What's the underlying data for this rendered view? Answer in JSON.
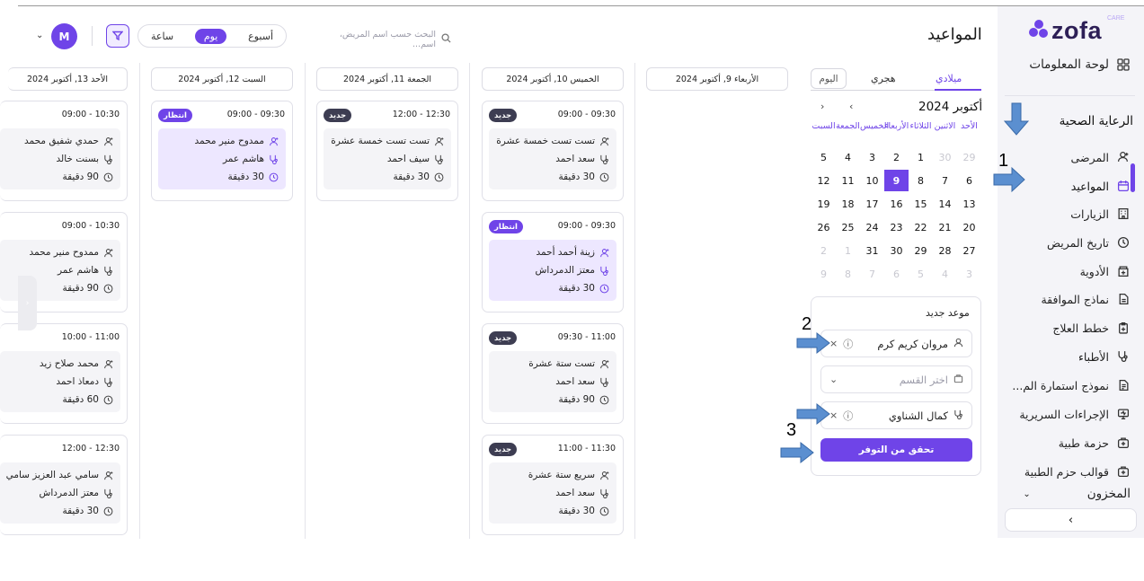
{
  "app": {
    "brand": "zofa",
    "brand_tag": "CARE",
    "page_title": "المواعيد"
  },
  "sidebar": {
    "dashboard": "لوحة المعلومات",
    "section_healthcare": "الرعاية الصحية",
    "items": [
      {
        "label": "المرضى",
        "icon": "patient-icon"
      },
      {
        "label": "المواعيد",
        "icon": "calendar-icon",
        "active": true
      },
      {
        "label": "الزيارات",
        "icon": "building-icon"
      },
      {
        "label": "تاريخ المريض",
        "icon": "history-icon"
      },
      {
        "label": "الأدوية",
        "icon": "pharmacy-icon"
      },
      {
        "label": "نماذج الموافقة",
        "icon": "document-icon"
      },
      {
        "label": "خطط العلاج",
        "icon": "clipboard-icon"
      },
      {
        "label": "الأطباء",
        "icon": "stethoscope-icon"
      },
      {
        "label": "نموذج استمارة الم...",
        "icon": "form-icon"
      },
      {
        "label": "الإجراءات السريرية",
        "icon": "monitor-icon"
      },
      {
        "label": "حزمة طبية",
        "icon": "medkit-icon"
      },
      {
        "label": "قوالب حزم الطبية",
        "icon": "medkit-template-icon"
      }
    ],
    "section_inventory": "المخزون",
    "collapse": "‹"
  },
  "header": {
    "search_placeholder": "البحث حسب اسم المريض، اسم...",
    "view_week": "أسبوع",
    "view_day": "يوم",
    "view_hour": "ساعة",
    "avatar_initial": "M"
  },
  "calendar": {
    "tab_gregorian": "ميلادي",
    "tab_hijri": "هجري",
    "today": "اليوم",
    "month": "أكتوبر 2024",
    "weekdays": [
      "الأحد",
      "الاثنين",
      "الثلاثاء",
      "الأربعاء",
      "الخميس",
      "الجمعة",
      "السبت"
    ],
    "weeks": [
      [
        "29",
        "30",
        "1",
        "2",
        "3",
        "4",
        "5"
      ],
      [
        "6",
        "7",
        "8",
        "9",
        "10",
        "11",
        "12"
      ],
      [
        "13",
        "14",
        "15",
        "16",
        "17",
        "18",
        "19"
      ],
      [
        "20",
        "21",
        "22",
        "23",
        "24",
        "25",
        "26"
      ],
      [
        "27",
        "28",
        "29",
        "30",
        "31",
        "1",
        "2"
      ],
      [
        "3",
        "4",
        "5",
        "6",
        "7",
        "8",
        "9"
      ]
    ],
    "selected": "9"
  },
  "new_appointment": {
    "title": "موعد جديد",
    "patient": "مروان كريم كرم",
    "department_placeholder": "اختر القسم",
    "doctor": "كمال الشناوي",
    "check_button": "تحقق من التوفر"
  },
  "annotations": [
    "1",
    "2",
    "3"
  ],
  "columns": [
    {
      "date": "الأربعاء 9, أكتوبر 2024",
      "appointments": []
    },
    {
      "date": "الخميس 10, أكتوبر 2024",
      "appointments": [
        {
          "time": "09:00 - 09:30",
          "badge": "جديد",
          "status": "new",
          "patient": "تست تست خمسة عشرة",
          "doctor": "سعد احمد",
          "duration": "30 دقيقة"
        },
        {
          "time": "09:00 - 09:30",
          "badge": "انتظار",
          "status": "wait",
          "patient": "زينة أحمد أحمد",
          "doctor": "معتز الدمرداش",
          "duration": "30 دقيقة"
        },
        {
          "time": "09:30 - 11:00",
          "badge": "جديد",
          "status": "new",
          "patient": "تست ستة عشرة",
          "doctor": "سعد احمد",
          "duration": "90 دقيقة"
        },
        {
          "time": "11:00 - 11:30",
          "badge": "جديد",
          "status": "new",
          "patient": "سريع ستة عشرة",
          "doctor": "سعد احمد",
          "duration": "30 دقيقة"
        }
      ]
    },
    {
      "date": "الجمعة 11, أكتوبر 2024",
      "appointments": [
        {
          "time": "12:00 - 12:30",
          "badge": "جديد",
          "status": "new",
          "patient": "تست تست خمسة عشرة",
          "doctor": "سيف احمد",
          "duration": "30 دقيقة"
        }
      ]
    },
    {
      "date": "السبت 12, أكتوبر 2024",
      "appointments": [
        {
          "time": "09:00 - 09:30",
          "badge": "انتظار",
          "status": "wait",
          "patient": "ممدوح منير محمد",
          "doctor": "هاشم عمر",
          "duration": "30 دقيقة"
        }
      ]
    },
    {
      "date": "الأحد 13, أكتوبر 2024",
      "appointments": [
        {
          "time": "09:00 - 10:30",
          "badge": "",
          "status": "none",
          "patient": "حمدي شفيق محمد",
          "doctor": "بسنت خالد",
          "duration": "90 دقيقة"
        },
        {
          "time": "09:00 - 10:30",
          "badge": "",
          "status": "none",
          "patient": "ممدوح منير محمد",
          "doctor": "هاشم عمر",
          "duration": "90 دقيقة"
        },
        {
          "time": "10:00 - 11:00",
          "badge": "",
          "status": "none",
          "patient": "محمد صلاح زيد",
          "doctor": "دمعاذ احمد",
          "duration": "60 دقيقة"
        },
        {
          "time": "12:00 - 12:30",
          "badge": "",
          "status": "none",
          "patient": "سامي عبد العزيز سامي",
          "doctor": "معتز الدمرداش",
          "duration": "30 دقيقة"
        }
      ]
    }
  ],
  "colors": {
    "accent": "#6f44e8",
    "badge_new": "#3d3d52",
    "waiting_bg": "#ede7ff"
  }
}
